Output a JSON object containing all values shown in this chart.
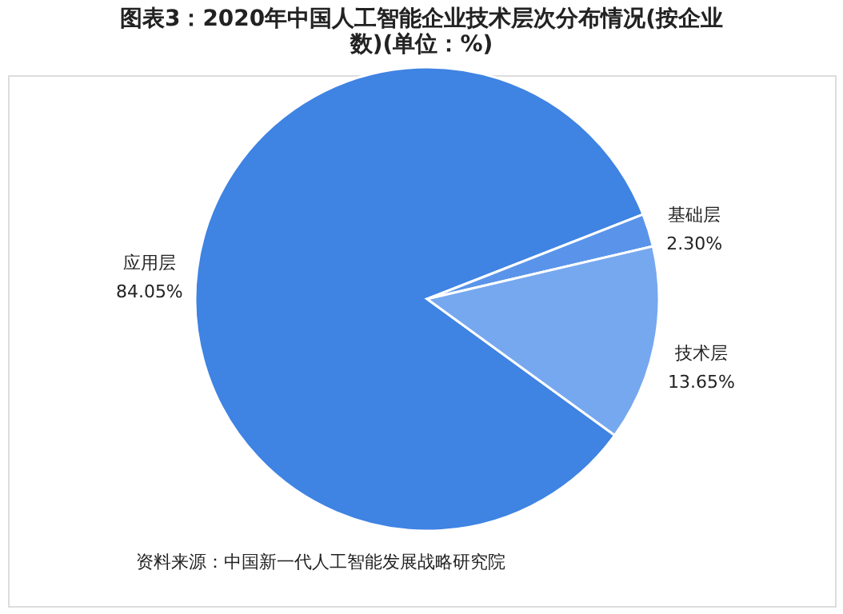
{
  "chart_data": {
    "type": "pie",
    "title": "图表3：2020年中国人工智能企业技术层次分布情况(按企业数)(单位：%)",
    "categories": [
      "应用层",
      "基础层",
      "技术层"
    ],
    "values": [
      84.05,
      2.3,
      13.65
    ],
    "value_labels": [
      "84.05%",
      "2.30%",
      "13.65%"
    ],
    "colors": [
      "#3f83e3",
      "#5a94ea",
      "#76a8ef"
    ],
    "annotations": [
      "资料来源：中国新一代人工智能发展战略研究院"
    ],
    "legend": false
  }
}
